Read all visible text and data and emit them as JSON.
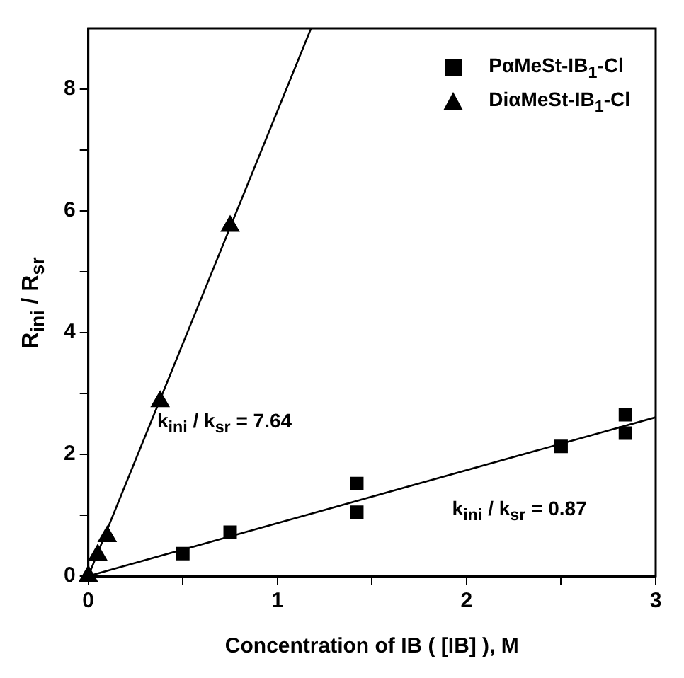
{
  "chart_data": {
    "type": "scatter",
    "xlabel": "Concentration of IB ( [IB] ), M",
    "ylabel": "R$_{ini}$ / R$_{sr}$",
    "xlim": [
      0,
      3
    ],
    "xticks": [
      0,
      {
        "value": 0.5,
        "label": null
      },
      1,
      {
        "value": 1.5,
        "label": null
      },
      2,
      {
        "value": 2.5,
        "label": null
      },
      3
    ],
    "ylim": [
      0,
      9
    ],
    "yticks": [
      0,
      {
        "value": 1,
        "label": null
      },
      2,
      {
        "value": 3,
        "label": null
      },
      4,
      {
        "value": 5,
        "label": null
      },
      6,
      {
        "value": 7,
        "label": null
      },
      8
    ],
    "grid": false,
    "legend": "top right",
    "series": [
      {
        "name": "PαMeSt-IB$_{1}$-Cl",
        "type": "scatter",
        "marker": "square",
        "color": "#000000",
        "x": [
          0.5,
          0.75,
          1.42,
          1.42,
          2.5,
          2.84,
          2.84
        ],
        "values": [
          0.37,
          0.72,
          1.52,
          1.05,
          2.13,
          2.35,
          2.65
        ]
      },
      {
        "name": "DiαMeSt-IB$_{1}$-Cl",
        "type": "scatter",
        "marker": "triangle",
        "color": "#000000",
        "x": [
          0,
          0.05,
          0.1,
          0.38,
          0.75
        ],
        "values": [
          0,
          0.35,
          0.65,
          2.87,
          5.75
        ]
      },
      {
        "type": "line",
        "marker": "none",
        "color": "#000000",
        "x": [
          0,
          1.178
        ],
        "values": [
          0,
          9
        ]
      },
      {
        "type": "line",
        "marker": "none",
        "color": "#000000",
        "x": [
          0,
          3
        ],
        "values": [
          0,
          2.61
        ]
      }
    ],
    "annotations": [
      "k$_{ini}$ / k$_{sr}$ = 7.64",
      "k$_{ini}$ / k$_{sr}$ = 0.87"
    ]
  }
}
